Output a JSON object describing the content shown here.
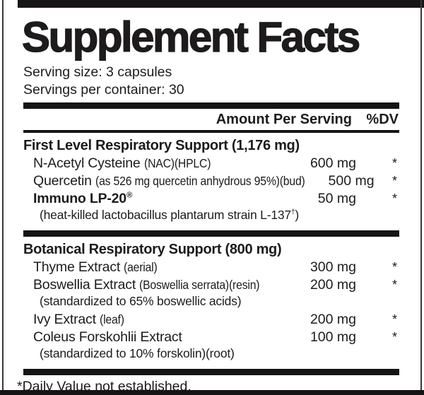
{
  "panel": {
    "title": "Supplement Facts",
    "serving_size": "Serving size: 3 capsules",
    "servings_per_container": "Servings per container: 30",
    "column_headers": {
      "amount": "Amount Per Serving",
      "dv": "%DV"
    },
    "sections": [
      {
        "heading": "First Level Respiratory Support (1,176 mg)",
        "rows": [
          {
            "name": "N-Acetyl Cysteine",
            "cond": "(NAC)(HPLC)",
            "amount": "600 mg",
            "dv": "*"
          },
          {
            "name": "Quercetin",
            "cond": "(as 526 mg quercetin anhydrous 95%)(bud)",
            "amount": "500 mg",
            "dv": "*"
          },
          {
            "name": "Immuno LP-20®",
            "bold": true,
            "amount": "50 mg",
            "dv": "*",
            "subline": "(heat-killed lactobacillus plantarum strain L-137†)"
          }
        ]
      },
      {
        "heading": "Botanical Respiratory Support (800 mg)",
        "rows": [
          {
            "name": "Thyme Extract",
            "cond": "(aerial)",
            "amount": "300 mg",
            "dv": "*"
          },
          {
            "name": "Boswellia Extract",
            "cond": "(Boswellia serrata)(resin)",
            "amount": "200 mg",
            "dv": "*",
            "subline": "(standardized to 65% boswellic acids)"
          },
          {
            "name": "Ivy Extract",
            "cond": "(leaf)",
            "amount": "200 mg",
            "dv": "*"
          },
          {
            "name": "Coleus Forskohlii Extract",
            "amount": "100 mg",
            "dv": "*",
            "subline": "(standardized to 10% forskolin)(root)"
          }
        ]
      }
    ],
    "footnote": "*Daily Value not established."
  },
  "colors": {
    "ink": "#1d1b1c",
    "bar": "#161414",
    "background": "#ffffff"
  }
}
